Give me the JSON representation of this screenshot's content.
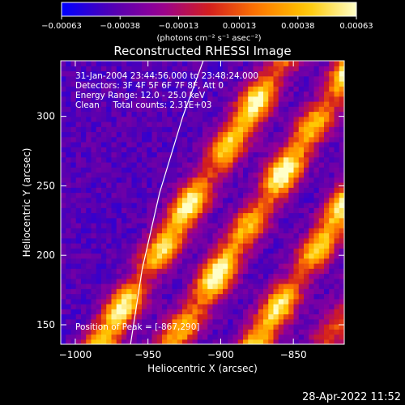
{
  "chart_data": {
    "type": "heatmap",
    "title": "Reconstructed RHESSI Image",
    "xlabel": "Heliocentric X (arcsec)",
    "ylabel": "Heliocentric Y (arcsec)",
    "xlim": [
      -1010,
      -815
    ],
    "ylim": [
      136,
      340
    ],
    "x_ticks": [
      -1000,
      -950,
      -900,
      -850
    ],
    "y_ticks": [
      150,
      200,
      250,
      300
    ],
    "x_tick_labels": [
      "−1000",
      "−950",
      "−900",
      "−850"
    ],
    "y_tick_labels": [
      "150",
      "200",
      "250",
      "300"
    ],
    "colorbar": {
      "range": [
        -0.00063,
        0.00063
      ],
      "ticks": [
        -0.00063,
        -0.00038,
        -0.00013,
        0.00013,
        0.00038,
        0.00063
      ],
      "tick_labels": [
        "−0.00063",
        "−0.00038",
        "−0.00013",
        "0.00013",
        "0.00038",
        "0.00063"
      ],
      "unit_label": "(photons cm⁻² s⁻¹ asec⁻²)",
      "colors": [
        "#0000ff",
        "#5000b4",
        "#960096",
        "#d21e1e",
        "#ff7800",
        "#ffc800",
        "#ffffc8"
      ]
    },
    "annotations": [
      "31-Jan-2004 23:44:56.000 to 23:48:24.000",
      "Detectors: 3F 4F 5F 6F 7F 8F, Att 0",
      "Energy Range: 12.0 - 25.0 keV",
      "Clean     Total counts: 2.31E+03"
    ],
    "peak_label": "Position of Peak = [-867,290]",
    "peak_position": [
      -867,
      290
    ],
    "limb_curve": [
      [
        -962,
        136
      ],
      [
        -954,
        190
      ],
      [
        -942,
        245
      ],
      [
        -926,
        300
      ],
      [
        -912,
        340
      ]
    ],
    "ridges": [
      {
        "x_at_150": -975,
        "amplitude": 1.0
      },
      {
        "x_at_150": -925,
        "amplitude": 1.0
      },
      {
        "x_at_150": -868,
        "amplitude": 0.95
      },
      {
        "x_at_150": -820,
        "amplitude": 0.6
      }
    ],
    "ridge_slope": 0.62,
    "ridge_period": 52
  },
  "footer": {
    "date": "28-Apr-2022 11:52"
  }
}
